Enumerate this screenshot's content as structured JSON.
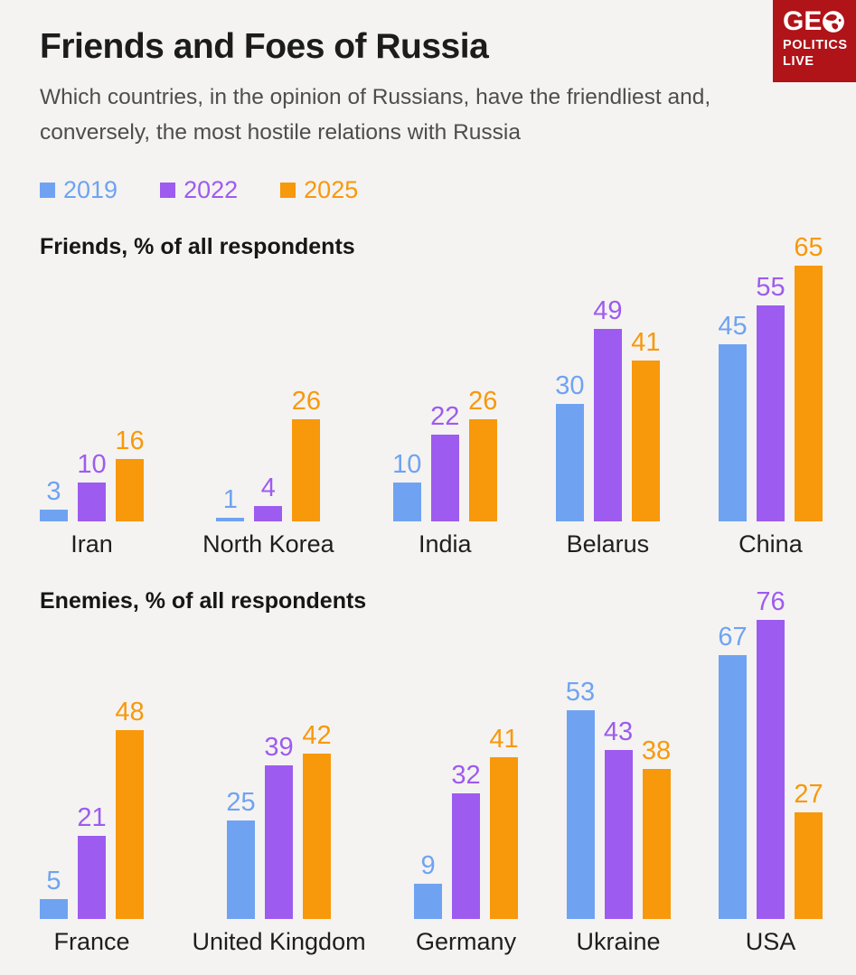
{
  "page": {
    "title": "Friends and Foes of Russia",
    "subtitle": "Which countries, in the opinion of Russians, have the friendliest and, conversely, the most hostile relations with Russia"
  },
  "logo": {
    "line1": "GE",
    "globe_icon": "globe-icon",
    "line2": "POLITICS",
    "line3": "LIVE",
    "bg_color": "#b01318",
    "text_color": "#ffffff"
  },
  "colors": {
    "background": "#f4f3f1",
    "series_2019": "#6fa3f2",
    "series_2022": "#9e5bef",
    "series_2025": "#f8980b",
    "title_text": "#1c1c1c",
    "subtitle_text": "#4d4d4d",
    "category_text": "#1e1e1e"
  },
  "legend": [
    {
      "label": "2019",
      "color": "#6fa3f2"
    },
    {
      "label": "2022",
      "color": "#9e5bef"
    },
    {
      "label": "2025",
      "color": "#f8980b"
    }
  ],
  "chart_data": [
    {
      "type": "bar",
      "title": "Friends, % of all respondents",
      "categories": [
        "Iran",
        "North Korea",
        "India",
        "Belarus",
        "China"
      ],
      "series": [
        {
          "name": "2019",
          "color": "#6fa3f2",
          "values": [
            3,
            1,
            10,
            30,
            45
          ]
        },
        {
          "name": "2022",
          "color": "#9e5bef",
          "values": [
            10,
            4,
            22,
            49,
            55
          ]
        },
        {
          "name": "2025",
          "color": "#f8980b",
          "values": [
            16,
            26,
            26,
            41,
            65
          ]
        }
      ],
      "ylim": [
        0,
        65
      ],
      "data_labels": true,
      "axes_hidden": true,
      "grid": false,
      "legend_position": "top"
    },
    {
      "type": "bar",
      "title": "Enemies, % of all respondents",
      "categories": [
        "France",
        "United Kingdom",
        "Germany",
        "Ukraine",
        "USA"
      ],
      "series": [
        {
          "name": "2019",
          "color": "#6fa3f2",
          "values": [
            5,
            25,
            9,
            53,
            67
          ]
        },
        {
          "name": "2022",
          "color": "#9e5bef",
          "values": [
            21,
            39,
            32,
            43,
            76
          ]
        },
        {
          "name": "2025",
          "color": "#f8980b",
          "values": [
            48,
            42,
            41,
            38,
            27
          ]
        }
      ],
      "ylim": [
        0,
        76
      ],
      "data_labels": true,
      "axes_hidden": true,
      "grid": false,
      "legend_position": "top"
    }
  ]
}
